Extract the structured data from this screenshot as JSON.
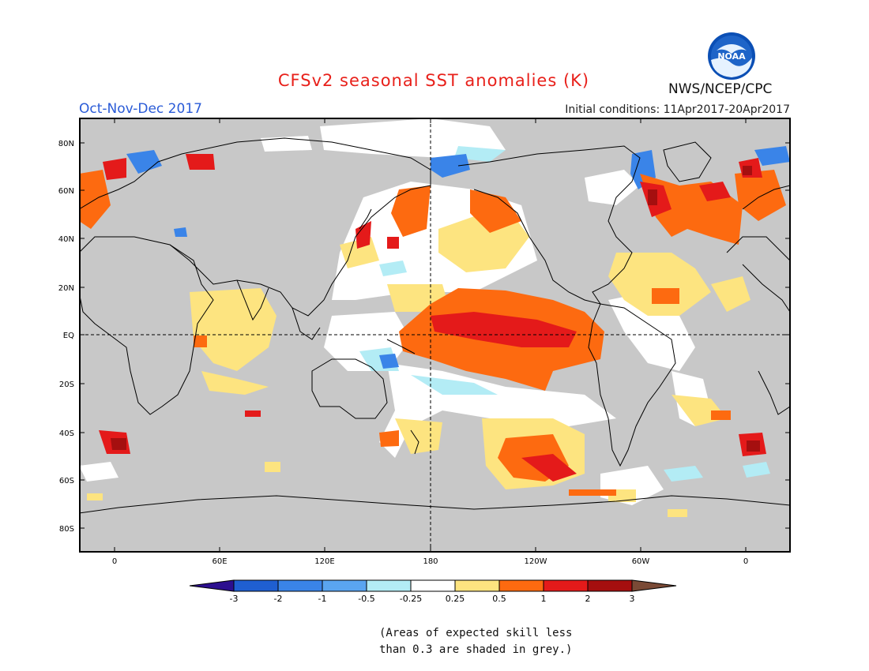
{
  "header": {
    "title": "CFSv2 seasonal SST anomalies (K)",
    "season": "Oct-Nov-Dec 2017",
    "initial_conditions": "Initial conditions: 11Apr2017-20Apr2017",
    "agency": "NWS/NCEP/CPC",
    "logo_text": "NOAA"
  },
  "map": {
    "lat_labels": [
      "80N",
      "60N",
      "40N",
      "20N",
      "EQ",
      "20S",
      "40S",
      "60S",
      "80S"
    ],
    "lon_labels": [
      "0",
      "60E",
      "120E",
      "180",
      "120W",
      "60W",
      "0"
    ],
    "land_color": "#c8c8c8",
    "grey_mask_color": "#c8c8c8"
  },
  "colorbar": {
    "labels": [
      "-3",
      "-2",
      "-1",
      "-0.5",
      "-0.25",
      "0.25",
      "0.5",
      "1",
      "2",
      "3"
    ],
    "colors": [
      "#2c0f8f",
      "#1f5fd1",
      "#3a84e8",
      "#5aa5f0",
      "#b3ecf5",
      "#ffffff",
      "#fde480",
      "#fd6a10",
      "#e41a1a",
      "#a50f0f",
      "#7a4a36"
    ]
  },
  "note": {
    "line1": "(Areas of expected skill less",
    "line2": "than 0.3 are shaded in grey.)"
  }
}
